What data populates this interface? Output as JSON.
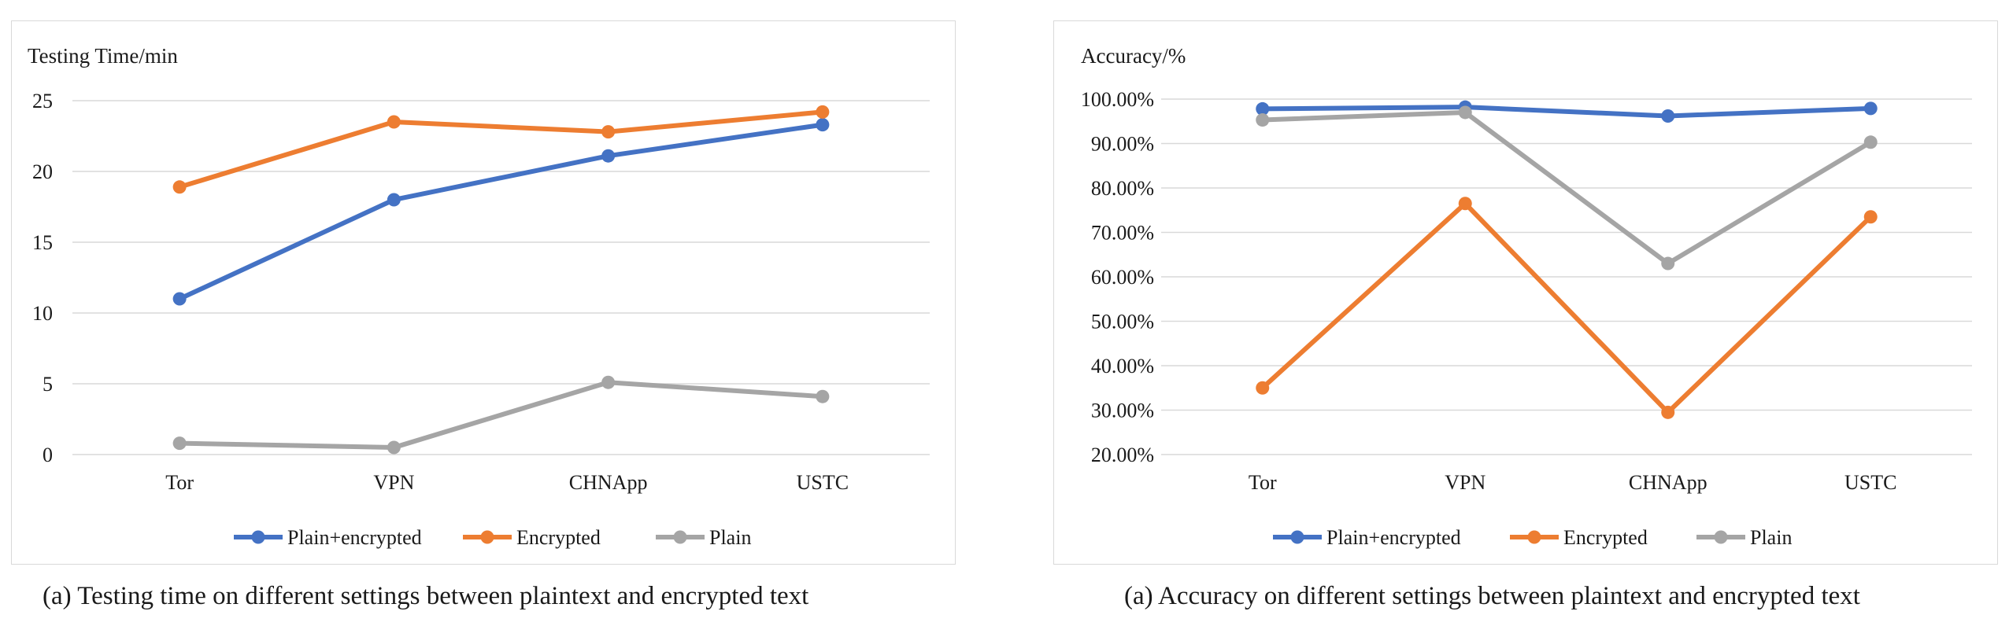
{
  "chart_data": [
    {
      "type": "line",
      "title": "",
      "ylabel": "Testing Time/min",
      "xlabel": "",
      "categories": [
        "Tor",
        "VPN",
        "CHNApp",
        "USTC"
      ],
      "yticks": [
        "0",
        "5",
        "10",
        "15",
        "20",
        "25"
      ],
      "ylim": [
        0,
        25
      ],
      "grid": true,
      "legend_position": "bottom",
      "series": [
        {
          "name": "Plain+encrypted",
          "color": "#4472C4",
          "values": [
            11,
            18,
            21.1,
            23.3
          ]
        },
        {
          "name": "Encrypted",
          "color": "#ED7D31",
          "values": [
            18.9,
            23.5,
            22.8,
            24.2
          ]
        },
        {
          "name": "Plain",
          "color": "#A5A5A5",
          "values": [
            0.8,
            0.5,
            5.1,
            4.1
          ]
        }
      ],
      "caption": "(a) Testing time on different settings between plaintext and encrypted text"
    },
    {
      "type": "line",
      "title": "",
      "ylabel": "Accuracy/%",
      "xlabel": "",
      "categories": [
        "Tor",
        "VPN",
        "CHNApp",
        "USTC"
      ],
      "yticks": [
        "20.00%",
        "30.00%",
        "40.00%",
        "50.00%",
        "60.00%",
        "70.00%",
        "80.00%",
        "90.00%",
        "100.00%"
      ],
      "ylim": [
        20,
        100
      ],
      "grid": true,
      "legend_position": "bottom",
      "series": [
        {
          "name": "Plain+encrypted",
          "color": "#4472C4",
          "values": [
            97.8,
            98.2,
            96.2,
            97.9
          ]
        },
        {
          "name": "Encrypted",
          "color": "#ED7D31",
          "values": [
            35,
            76.5,
            29.5,
            73.5
          ]
        },
        {
          "name": "Plain",
          "color": "#A5A5A5",
          "values": [
            95.3,
            97,
            63,
            90.3
          ]
        }
      ],
      "caption": "(a) Accuracy on different settings between plaintext and encrypted text"
    }
  ]
}
